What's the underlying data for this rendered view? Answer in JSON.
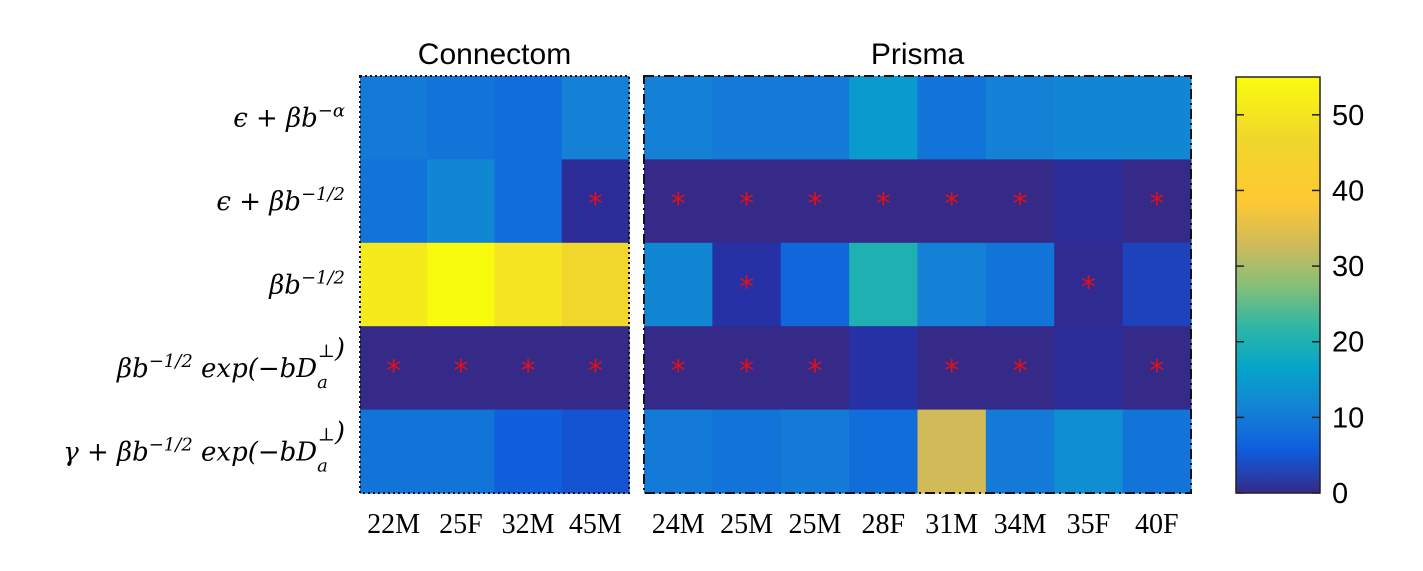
{
  "chart_data": {
    "type": "heatmap",
    "groups": [
      {
        "name": "Connectom",
        "columns": [
          0,
          1,
          2,
          3
        ],
        "border": "dotted"
      },
      {
        "name": "Prisma",
        "columns": [
          4,
          5,
          6,
          7,
          8,
          9,
          10,
          11
        ],
        "border": "dash-dot"
      }
    ],
    "columns": [
      "22M",
      "25F",
      "32M",
      "45M",
      "24M",
      "25M",
      "25M",
      "28F",
      "31M",
      "34M",
      "35F",
      "40F"
    ],
    "rows": [
      "ϵ + βb^{−α}",
      "ϵ + βb^{−1/2}",
      "βb^{−1/2}",
      "βb^{−1/2} exp(−bD_a^⊥)",
      "γ + βb^{−1/2} exp(−bD_a^⊥)"
    ],
    "values": [
      [
        10,
        9,
        8,
        11,
        11,
        10,
        10,
        15,
        9,
        11,
        12,
        12
      ],
      [
        9,
        12,
        8,
        2,
        0,
        0,
        0,
        0,
        0,
        0,
        2,
        0
      ],
      [
        51,
        56,
        50,
        46,
        12,
        3,
        7,
        20,
        11,
        9,
        1,
        4
      ],
      [
        0,
        0,
        0,
        0,
        0,
        0,
        0,
        3,
        0,
        0,
        2,
        0
      ],
      [
        9,
        9,
        6,
        5,
        10,
        9,
        10,
        8,
        33,
        10,
        13,
        9
      ]
    ],
    "markers": [
      [
        false,
        false,
        false,
        false,
        false,
        false,
        false,
        false,
        false,
        false,
        false,
        false
      ],
      [
        false,
        false,
        false,
        true,
        true,
        true,
        true,
        true,
        true,
        true,
        false,
        true
      ],
      [
        false,
        false,
        false,
        false,
        false,
        true,
        false,
        false,
        false,
        false,
        true,
        false
      ],
      [
        true,
        true,
        true,
        true,
        true,
        true,
        true,
        false,
        true,
        true,
        false,
        true
      ],
      [
        false,
        false,
        false,
        false,
        false,
        false,
        false,
        false,
        false,
        false,
        false,
        false
      ]
    ],
    "marker_symbol": "*",
    "marker_color": "#e0101a",
    "colorbar": {
      "min": 0,
      "max": 55,
      "ticks": [
        "0",
        "10",
        "20",
        "30",
        "40",
        "50"
      ],
      "tick_values": [
        0,
        10,
        20,
        30,
        40,
        50
      ],
      "colormap": "parula"
    }
  }
}
